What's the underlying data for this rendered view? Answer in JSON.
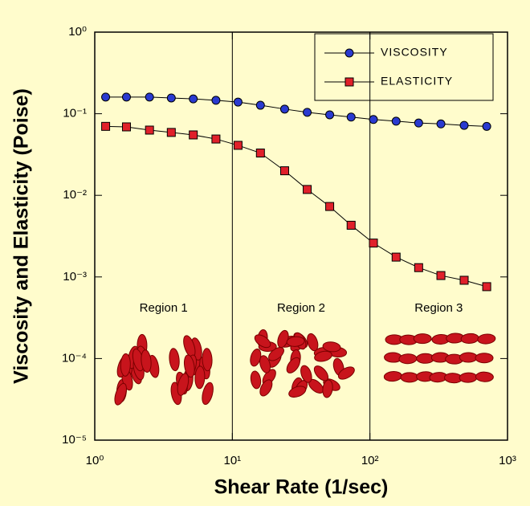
{
  "chart_data": {
    "type": "line",
    "x_label": "Shear Rate (1/sec)",
    "y_label": "Viscosity and Elasticity (Poise)",
    "x": [
      1.2,
      1.7,
      2.5,
      3.6,
      5.2,
      7.6,
      11,
      16,
      24,
      35,
      51,
      73,
      106,
      155,
      226,
      328,
      484,
      706
    ],
    "series": [
      {
        "name": "VISCOSITY",
        "color": "#2a3ad0",
        "marker": "circle",
        "values": [
          0.16,
          0.16,
          0.16,
          0.156,
          0.152,
          0.146,
          0.139,
          0.127,
          0.114,
          0.104,
          0.097,
          0.091,
          0.085,
          0.081,
          0.077,
          0.075,
          0.072,
          0.07
        ]
      },
      {
        "name": "ELASTICITY",
        "color": "#e0202a",
        "marker": "square",
        "values": [
          0.07,
          0.069,
          0.063,
          0.059,
          0.055,
          0.049,
          0.041,
          0.033,
          0.02,
          0.0118,
          0.0073,
          0.0043,
          0.0026,
          0.00175,
          0.0013,
          0.00104,
          0.00091,
          0.00076
        ]
      }
    ],
    "xscale": "log",
    "yscale": "log",
    "xlim": [
      1,
      1000
    ],
    "ylim": [
      1e-05,
      1
    ],
    "xticks": [
      {
        "value": 1,
        "label": "10⁰"
      },
      {
        "value": 10,
        "label": "10¹"
      },
      {
        "value": 100,
        "label": "10²"
      },
      {
        "value": 1000,
        "label": "10³"
      }
    ],
    "yticks": [
      {
        "value": 1,
        "label": "10⁰"
      },
      {
        "value": 0.1,
        "label": "10⁻¹"
      },
      {
        "value": 0.01,
        "label": "10⁻²"
      },
      {
        "value": 0.001,
        "label": "10⁻³"
      },
      {
        "value": 0.0001,
        "label": "10⁻⁴"
      },
      {
        "value": 1e-05,
        "label": "10⁻⁵"
      }
    ],
    "region_boundaries": [
      10,
      100
    ],
    "regions": [
      "Region 1",
      "Region 2",
      "Region 3"
    ],
    "legend": "upper right"
  }
}
